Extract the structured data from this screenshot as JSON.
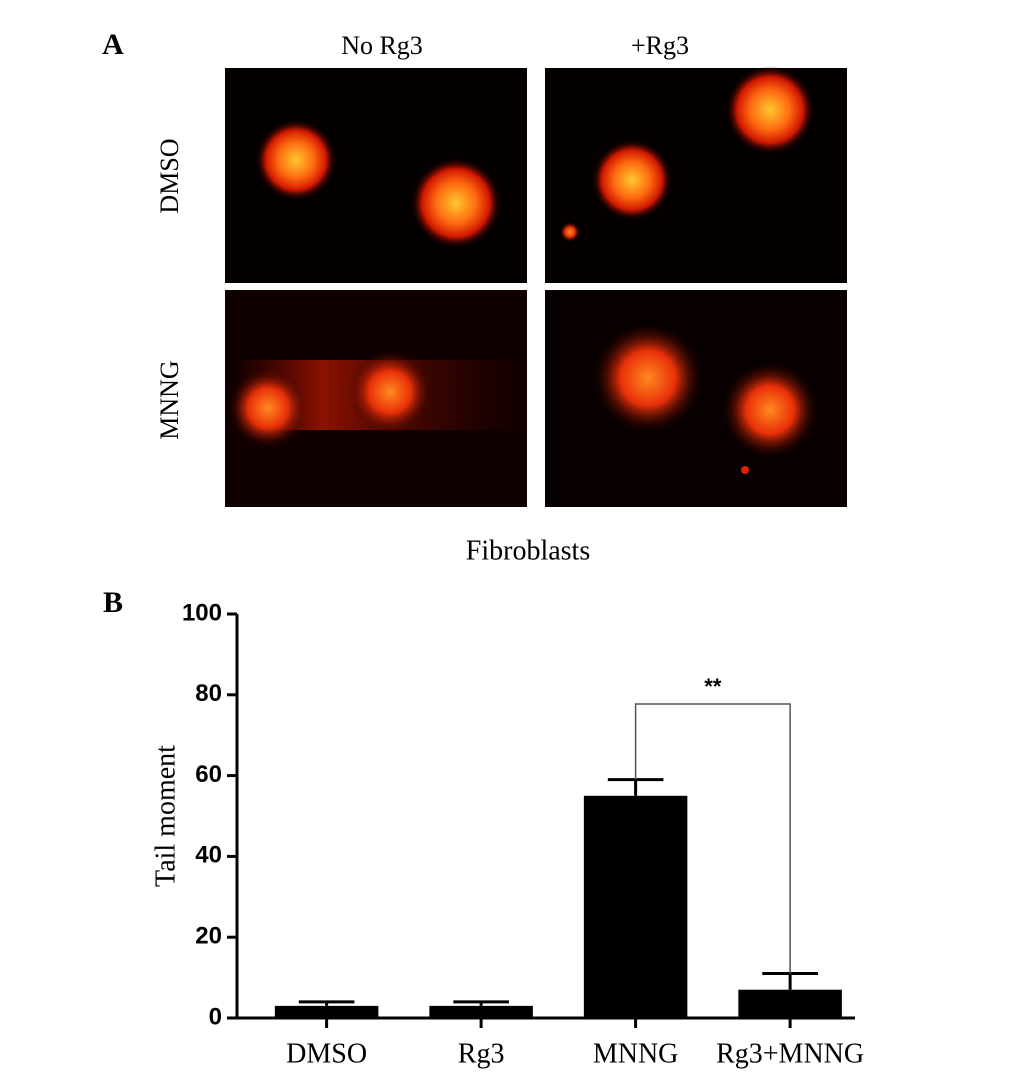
{
  "panel_a": {
    "label": "A",
    "columns": [
      "No Rg3",
      "+Rg3"
    ],
    "rows": [
      "DMSO",
      "MNNG"
    ],
    "caption": "Fibroblasts"
  },
  "chart_data": {
    "type": "bar",
    "panel_label": "B",
    "ylabel": "Tail moment",
    "categories": [
      "DMSO",
      "Rg3",
      "MNNG",
      "Rg3+MNNG"
    ],
    "values": [
      3,
      3,
      55,
      7
    ],
    "errors": [
      1,
      1,
      4,
      4
    ],
    "color": "#000000",
    "ylim": [
      0,
      100
    ],
    "yticks": [
      0,
      20,
      40,
      60,
      80,
      100
    ],
    "annotation": "**"
  }
}
